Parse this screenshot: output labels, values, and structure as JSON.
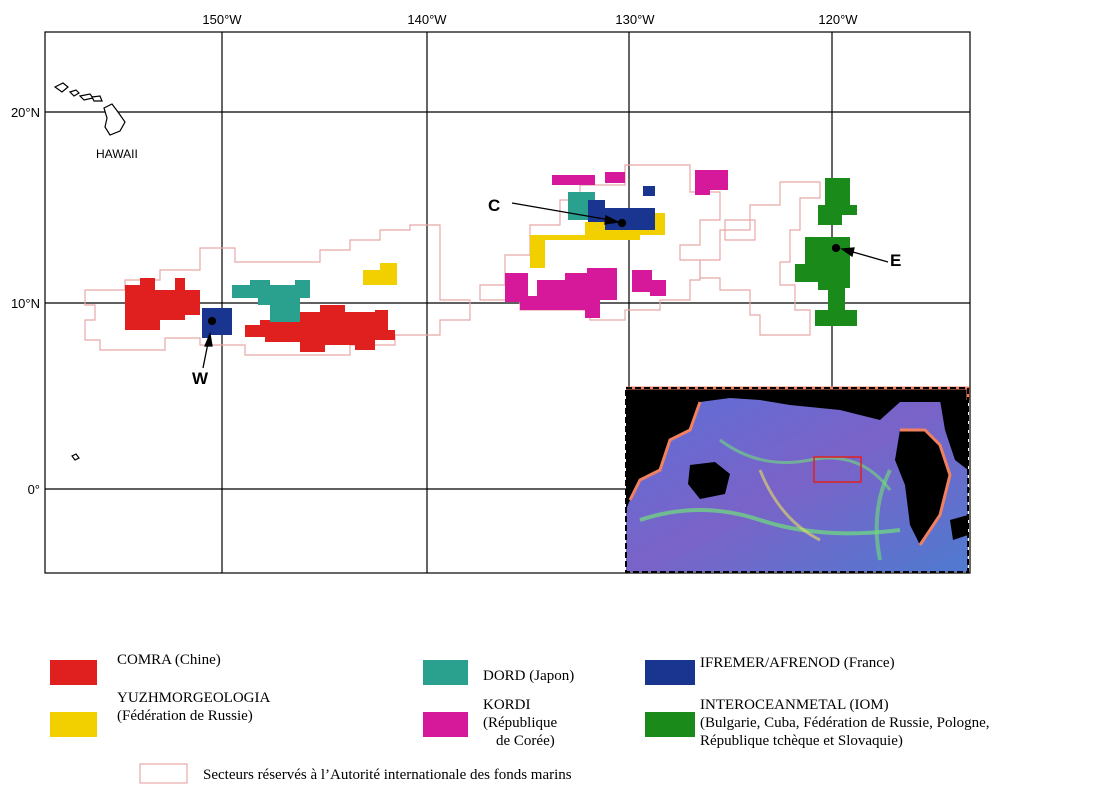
{
  "map": {
    "longitude_labels": [
      "150°W",
      "140°W",
      "130°W",
      "120°W"
    ],
    "latitude_labels": [
      "20°N",
      "10°N",
      "0°"
    ],
    "place_label": "HAWAII",
    "site_labels": [
      "C",
      "E",
      "W"
    ]
  },
  "legend": {
    "items": [
      {
        "lines": [
          "COMRA (Chine)"
        ]
      },
      {
        "lines": [
          "YUZHMORGEOLOGIA",
          "(Fédération de Russie)"
        ]
      },
      {
        "lines": [
          "DORD (Japon)"
        ]
      },
      {
        "lines": [
          "KORDI",
          "(République",
          "de Corée)"
        ]
      },
      {
        "lines": [
          "IFREMER/AFRENOD (France)"
        ]
      },
      {
        "lines": [
          "INTEROCEANMETAL (IOM)",
          "(Bulgarie, Cuba, Fédération de Russie, Pologne,",
          "République tchèque et Slovaquie)"
        ]
      }
    ],
    "reserved_areas": "Secteurs réservés à l’Autorité internationale des fonds marins"
  }
}
